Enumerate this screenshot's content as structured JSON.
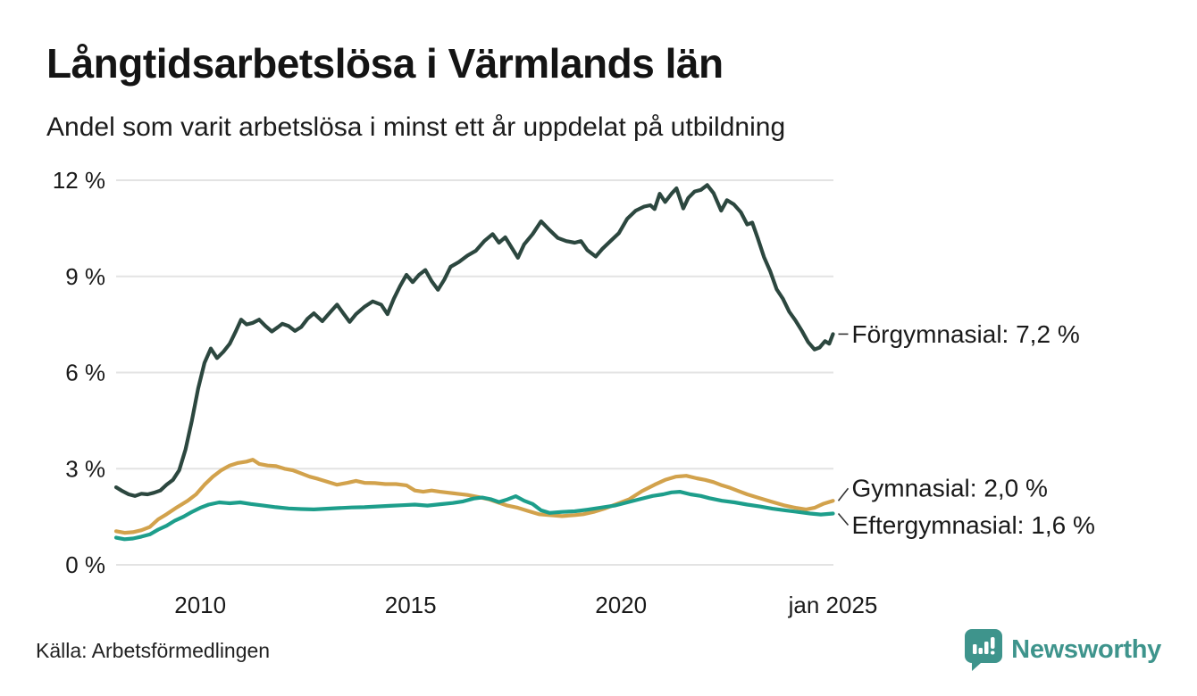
{
  "header": {
    "title": "Långtidsarbetslösa i Värmlands län",
    "subtitle": "Andel som varit arbetslösa i minst ett år uppdelat på utbildning"
  },
  "source": {
    "label": "Källa: Arbetsförmedlingen"
  },
  "branding": {
    "name": "Newsworthy",
    "color": "#3E948C",
    "icon": "newsworthy-speech-bubble-bar-chart-icon"
  },
  "chart_data": {
    "type": "line",
    "title": "Långtidsarbetslösa i Värmlands län",
    "subtitle": "Andel som varit arbetslösa i minst ett år uppdelat på utbildning",
    "source": "Källa: Arbetsförmedlingen",
    "grid": true,
    "legend_position": "end-of-line labels, right of plot",
    "x_axis": {
      "range": [
        2008.0,
        2025.05
      ],
      "ticks": [
        {
          "x": 2010,
          "label": "2010"
        },
        {
          "x": 2015,
          "label": "2015"
        },
        {
          "x": 2020,
          "label": "2020"
        },
        {
          "x": 2025.04,
          "label": "jan 2025"
        }
      ]
    },
    "y_axis": {
      "range": [
        0,
        12
      ],
      "unit": "%",
      "ticks": [
        {
          "v": 0,
          "label": "0 %"
        },
        {
          "v": 3,
          "label": "3 %"
        },
        {
          "v": 6,
          "label": "6 %"
        },
        {
          "v": 9,
          "label": "9 %"
        },
        {
          "v": 12,
          "label": "12 %"
        }
      ]
    },
    "series": [
      {
        "key": "gymnasial",
        "name": "Gymnasial",
        "label": "Gymnasial: 2,0 %",
        "last_value": "2,0 %",
        "color": "#D2A24C",
        "label_dy": -14,
        "points": [
          [
            2008.0,
            1.05
          ],
          [
            2008.2,
            1.0
          ],
          [
            2008.4,
            1.02
          ],
          [
            2008.6,
            1.08
          ],
          [
            2008.8,
            1.18
          ],
          [
            2009.0,
            1.42
          ],
          [
            2009.2,
            1.58
          ],
          [
            2009.45,
            1.8
          ],
          [
            2009.7,
            2.0
          ],
          [
            2009.9,
            2.2
          ],
          [
            2010.1,
            2.5
          ],
          [
            2010.3,
            2.75
          ],
          [
            2010.5,
            2.95
          ],
          [
            2010.7,
            3.1
          ],
          [
            2010.9,
            3.18
          ],
          [
            2011.1,
            3.22
          ],
          [
            2011.25,
            3.28
          ],
          [
            2011.4,
            3.15
          ],
          [
            2011.6,
            3.1
          ],
          [
            2011.8,
            3.08
          ],
          [
            2012.0,
            3.0
          ],
          [
            2012.2,
            2.95
          ],
          [
            2012.4,
            2.85
          ],
          [
            2012.6,
            2.75
          ],
          [
            2012.8,
            2.68
          ],
          [
            2013.0,
            2.6
          ],
          [
            2013.25,
            2.5
          ],
          [
            2013.5,
            2.56
          ],
          [
            2013.7,
            2.62
          ],
          [
            2013.9,
            2.56
          ],
          [
            2014.15,
            2.55
          ],
          [
            2014.4,
            2.52
          ],
          [
            2014.65,
            2.52
          ],
          [
            2014.9,
            2.48
          ],
          [
            2015.1,
            2.32
          ],
          [
            2015.3,
            2.28
          ],
          [
            2015.5,
            2.32
          ],
          [
            2015.7,
            2.28
          ],
          [
            2015.9,
            2.25
          ],
          [
            2016.1,
            2.22
          ],
          [
            2016.35,
            2.18
          ],
          [
            2016.6,
            2.12
          ],
          [
            2016.85,
            2.05
          ],
          [
            2017.05,
            1.96
          ],
          [
            2017.3,
            1.85
          ],
          [
            2017.55,
            1.78
          ],
          [
            2017.8,
            1.68
          ],
          [
            2018.05,
            1.58
          ],
          [
            2018.3,
            1.55
          ],
          [
            2018.6,
            1.52
          ],
          [
            2018.9,
            1.55
          ],
          [
            2019.1,
            1.58
          ],
          [
            2019.35,
            1.65
          ],
          [
            2019.6,
            1.75
          ],
          [
            2019.9,
            1.9
          ],
          [
            2020.2,
            2.05
          ],
          [
            2020.5,
            2.3
          ],
          [
            2020.8,
            2.5
          ],
          [
            2021.05,
            2.65
          ],
          [
            2021.3,
            2.75
          ],
          [
            2021.55,
            2.78
          ],
          [
            2021.8,
            2.7
          ],
          [
            2022.0,
            2.65
          ],
          [
            2022.2,
            2.58
          ],
          [
            2022.4,
            2.48
          ],
          [
            2022.6,
            2.4
          ],
          [
            2022.8,
            2.3
          ],
          [
            2023.0,
            2.2
          ],
          [
            2023.25,
            2.1
          ],
          [
            2023.55,
            1.98
          ],
          [
            2023.9,
            1.85
          ],
          [
            2024.15,
            1.78
          ],
          [
            2024.4,
            1.73
          ],
          [
            2024.6,
            1.78
          ],
          [
            2024.8,
            1.9
          ],
          [
            2025.04,
            2.0
          ]
        ]
      },
      {
        "key": "eftergymnasial",
        "name": "Eftergymnasial",
        "label": "Eftergymnasial: 1,6 %",
        "last_value": "1,6 %",
        "color": "#1D9E8B",
        "label_dy": 13,
        "points": [
          [
            2008.0,
            0.85
          ],
          [
            2008.2,
            0.8
          ],
          [
            2008.4,
            0.82
          ],
          [
            2008.6,
            0.88
          ],
          [
            2008.8,
            0.95
          ],
          [
            2009.0,
            1.1
          ],
          [
            2009.2,
            1.22
          ],
          [
            2009.4,
            1.38
          ],
          [
            2009.6,
            1.5
          ],
          [
            2009.8,
            1.65
          ],
          [
            2010.0,
            1.78
          ],
          [
            2010.2,
            1.88
          ],
          [
            2010.45,
            1.95
          ],
          [
            2010.7,
            1.92
          ],
          [
            2010.95,
            1.95
          ],
          [
            2011.2,
            1.9
          ],
          [
            2011.5,
            1.85
          ],
          [
            2011.8,
            1.8
          ],
          [
            2012.1,
            1.76
          ],
          [
            2012.4,
            1.74
          ],
          [
            2012.7,
            1.73
          ],
          [
            2013.0,
            1.75
          ],
          [
            2013.3,
            1.77
          ],
          [
            2013.6,
            1.79
          ],
          [
            2013.9,
            1.8
          ],
          [
            2014.2,
            1.82
          ],
          [
            2014.5,
            1.84
          ],
          [
            2014.8,
            1.86
          ],
          [
            2015.1,
            1.88
          ],
          [
            2015.4,
            1.85
          ],
          [
            2015.7,
            1.89
          ],
          [
            2016.0,
            1.93
          ],
          [
            2016.25,
            1.98
          ],
          [
            2016.5,
            2.07
          ],
          [
            2016.7,
            2.1
          ],
          [
            2016.9,
            2.05
          ],
          [
            2017.1,
            1.96
          ],
          [
            2017.3,
            2.04
          ],
          [
            2017.5,
            2.14
          ],
          [
            2017.7,
            2.0
          ],
          [
            2017.9,
            1.9
          ],
          [
            2018.1,
            1.7
          ],
          [
            2018.3,
            1.62
          ],
          [
            2018.6,
            1.65
          ],
          [
            2018.9,
            1.67
          ],
          [
            2019.2,
            1.72
          ],
          [
            2019.5,
            1.78
          ],
          [
            2019.85,
            1.85
          ],
          [
            2020.15,
            1.95
          ],
          [
            2020.45,
            2.05
          ],
          [
            2020.75,
            2.15
          ],
          [
            2021.0,
            2.2
          ],
          [
            2021.2,
            2.26
          ],
          [
            2021.4,
            2.28
          ],
          [
            2021.65,
            2.2
          ],
          [
            2021.9,
            2.15
          ],
          [
            2022.1,
            2.08
          ],
          [
            2022.4,
            2.0
          ],
          [
            2022.7,
            1.95
          ],
          [
            2023.0,
            1.88
          ],
          [
            2023.3,
            1.82
          ],
          [
            2023.6,
            1.75
          ],
          [
            2023.9,
            1.7
          ],
          [
            2024.2,
            1.65
          ],
          [
            2024.5,
            1.6
          ],
          [
            2024.75,
            1.57
          ],
          [
            2025.04,
            1.6
          ]
        ]
      },
      {
        "key": "forgymnasial",
        "name": "Förgymnasial",
        "label": "Förgymnasial: 7,2 %",
        "last_value": "7,2 %",
        "color": "#2C473F",
        "label_dy": 0,
        "points": [
          [
            2008.0,
            2.42
          ],
          [
            2008.15,
            2.3
          ],
          [
            2008.3,
            2.2
          ],
          [
            2008.45,
            2.15
          ],
          [
            2008.6,
            2.22
          ],
          [
            2008.75,
            2.2
          ],
          [
            2008.9,
            2.25
          ],
          [
            2009.05,
            2.32
          ],
          [
            2009.2,
            2.5
          ],
          [
            2009.35,
            2.65
          ],
          [
            2009.5,
            2.95
          ],
          [
            2009.65,
            3.6
          ],
          [
            2009.8,
            4.5
          ],
          [
            2009.95,
            5.5
          ],
          [
            2010.1,
            6.3
          ],
          [
            2010.25,
            6.75
          ],
          [
            2010.4,
            6.45
          ],
          [
            2010.55,
            6.65
          ],
          [
            2010.7,
            6.9
          ],
          [
            2010.85,
            7.3
          ],
          [
            2010.97,
            7.65
          ],
          [
            2011.1,
            7.5
          ],
          [
            2011.25,
            7.55
          ],
          [
            2011.4,
            7.65
          ],
          [
            2011.55,
            7.45
          ],
          [
            2011.7,
            7.28
          ],
          [
            2011.85,
            7.42
          ],
          [
            2011.95,
            7.52
          ],
          [
            2012.1,
            7.45
          ],
          [
            2012.25,
            7.3
          ],
          [
            2012.4,
            7.42
          ],
          [
            2012.55,
            7.68
          ],
          [
            2012.7,
            7.85
          ],
          [
            2012.9,
            7.6
          ],
          [
            2013.1,
            7.9
          ],
          [
            2013.25,
            8.12
          ],
          [
            2013.4,
            7.85
          ],
          [
            2013.55,
            7.58
          ],
          [
            2013.7,
            7.82
          ],
          [
            2013.9,
            8.05
          ],
          [
            2014.1,
            8.22
          ],
          [
            2014.3,
            8.12
          ],
          [
            2014.45,
            7.82
          ],
          [
            2014.6,
            8.3
          ],
          [
            2014.75,
            8.7
          ],
          [
            2014.9,
            9.05
          ],
          [
            2015.05,
            8.82
          ],
          [
            2015.2,
            9.05
          ],
          [
            2015.35,
            9.2
          ],
          [
            2015.5,
            8.85
          ],
          [
            2015.65,
            8.58
          ],
          [
            2015.8,
            8.9
          ],
          [
            2015.95,
            9.3
          ],
          [
            2016.15,
            9.45
          ],
          [
            2016.35,
            9.65
          ],
          [
            2016.55,
            9.8
          ],
          [
            2016.75,
            10.1
          ],
          [
            2016.95,
            10.32
          ],
          [
            2017.1,
            10.05
          ],
          [
            2017.25,
            10.22
          ],
          [
            2017.4,
            9.9
          ],
          [
            2017.55,
            9.58
          ],
          [
            2017.7,
            10.0
          ],
          [
            2017.9,
            10.32
          ],
          [
            2018.1,
            10.72
          ],
          [
            2018.3,
            10.45
          ],
          [
            2018.5,
            10.2
          ],
          [
            2018.7,
            10.1
          ],
          [
            2018.9,
            10.05
          ],
          [
            2019.05,
            10.1
          ],
          [
            2019.2,
            9.82
          ],
          [
            2019.4,
            9.62
          ],
          [
            2019.55,
            9.85
          ],
          [
            2019.75,
            10.1
          ],
          [
            2019.95,
            10.35
          ],
          [
            2020.15,
            10.8
          ],
          [
            2020.35,
            11.05
          ],
          [
            2020.55,
            11.18
          ],
          [
            2020.7,
            11.22
          ],
          [
            2020.8,
            11.1
          ],
          [
            2020.92,
            11.58
          ],
          [
            2021.05,
            11.32
          ],
          [
            2021.2,
            11.58
          ],
          [
            2021.32,
            11.75
          ],
          [
            2021.48,
            11.12
          ],
          [
            2021.6,
            11.45
          ],
          [
            2021.75,
            11.65
          ],
          [
            2021.9,
            11.7
          ],
          [
            2022.05,
            11.85
          ],
          [
            2022.2,
            11.6
          ],
          [
            2022.38,
            11.05
          ],
          [
            2022.52,
            11.38
          ],
          [
            2022.68,
            11.25
          ],
          [
            2022.85,
            11.0
          ],
          [
            2023.0,
            10.62
          ],
          [
            2023.12,
            10.68
          ],
          [
            2023.25,
            10.2
          ],
          [
            2023.4,
            9.6
          ],
          [
            2023.55,
            9.15
          ],
          [
            2023.7,
            8.6
          ],
          [
            2023.85,
            8.3
          ],
          [
            2024.0,
            7.9
          ],
          [
            2024.15,
            7.62
          ],
          [
            2024.3,
            7.3
          ],
          [
            2024.45,
            6.95
          ],
          [
            2024.6,
            6.72
          ],
          [
            2024.72,
            6.78
          ],
          [
            2024.85,
            6.98
          ],
          [
            2024.95,
            6.9
          ],
          [
            2025.04,
            7.2
          ]
        ]
      }
    ]
  }
}
